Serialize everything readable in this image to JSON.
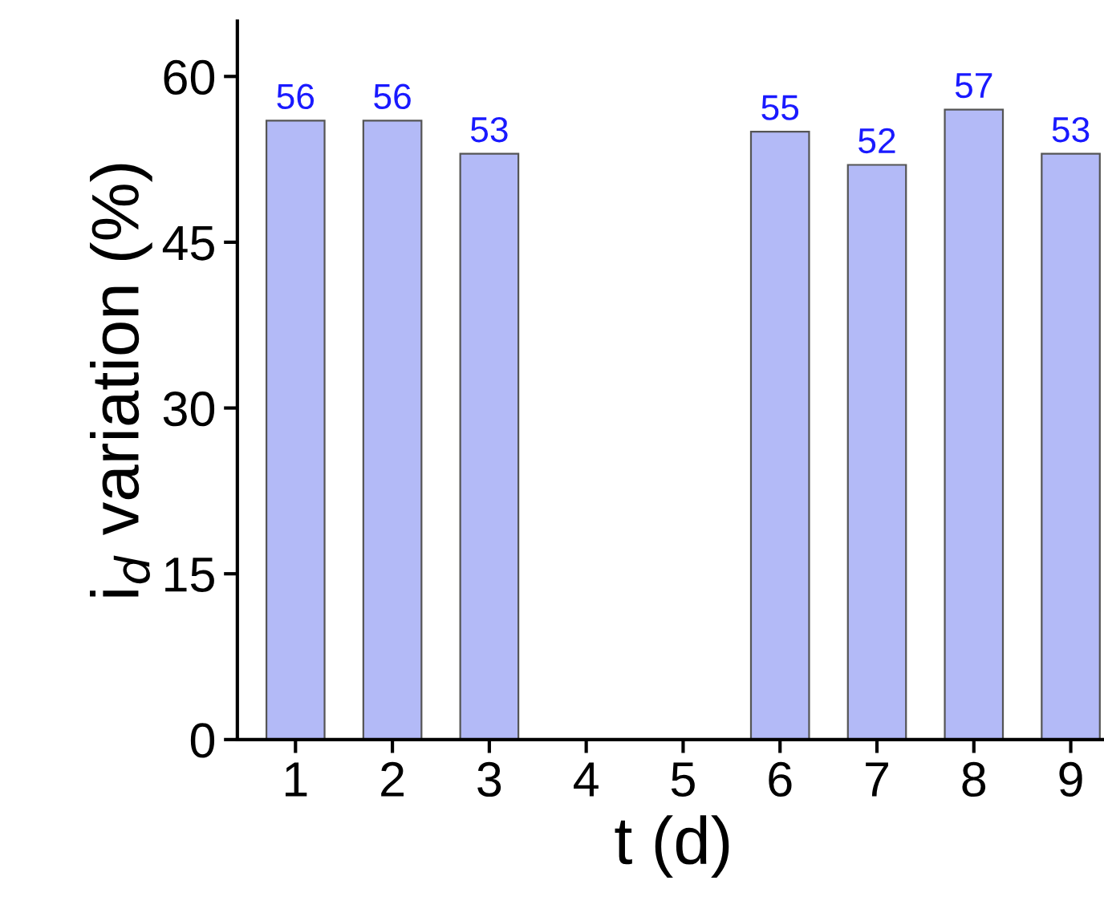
{
  "chart_data": {
    "type": "bar",
    "xlabel": "t (d)",
    "ylabel": "i$_{d}$ variation (%)",
    "categories": [
      "1",
      "2",
      "3",
      "4",
      "5",
      "6",
      "7",
      "8",
      "9"
    ],
    "values": [
      56,
      56,
      53,
      null,
      null,
      55,
      52,
      57,
      53
    ],
    "color": "#b3baf7",
    "ylim": [
      0,
      65
    ],
    "yticks": [
      0,
      15,
      30,
      45,
      60
    ],
    "grid": false,
    "data_labels": true
  }
}
